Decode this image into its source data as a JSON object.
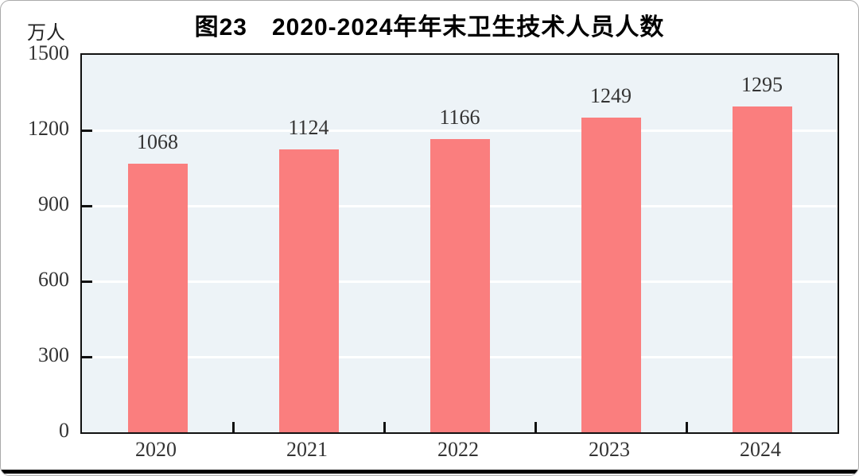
{
  "page": {
    "unit_label": "万人"
  },
  "chart_data": {
    "type": "bar",
    "title": "图23　2020-2024年年末卫生技术人员人数",
    "ylabel": "万人",
    "xlabel": "",
    "categories": [
      "2020",
      "2021",
      "2022",
      "2023",
      "2024"
    ],
    "values": [
      1068,
      1124,
      1166,
      1249,
      1295
    ],
    "data_labels": [
      "1068",
      "1124",
      "1166",
      "1249",
      "1295"
    ],
    "ylim": [
      0,
      1500
    ],
    "yticks": [
      0,
      300,
      600,
      900,
      1200,
      1500
    ],
    "grid": true,
    "legend_position": "none",
    "colors": {
      "bar": "#FA7E7E",
      "plot_background": "#EDF3F7",
      "gridline": "#FFFFFF",
      "axis_border": "#111111",
      "text": "#333333",
      "title_text": "#000000",
      "bottom_rule": "#000000"
    }
  }
}
